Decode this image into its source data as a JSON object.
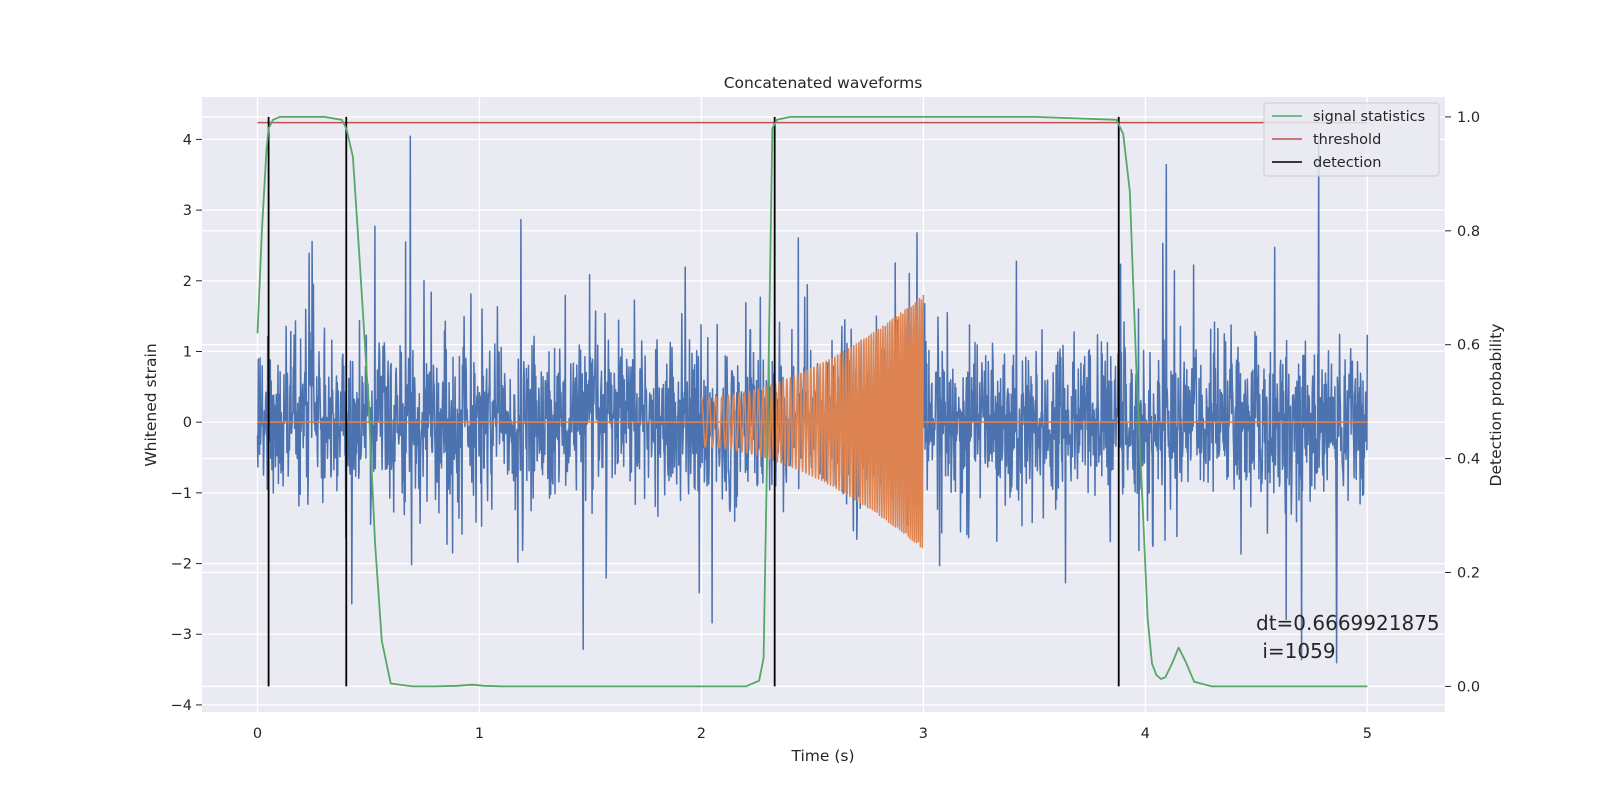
{
  "chart_data": {
    "type": "line",
    "title": "Concatenated waveforms",
    "xlabel": "Time (s)",
    "ylabel_left": "Whitened strain",
    "ylabel_right": "Detection probability",
    "xlim": [
      -0.25,
      5.35
    ],
    "ylim_left": [
      -4.1,
      4.6
    ],
    "ylim_right": [
      -0.045,
      1.035
    ],
    "x_ticks": [
      0,
      1,
      2,
      3,
      4,
      5
    ],
    "y_left_ticks": [
      -4,
      -3,
      -2,
      -1,
      0,
      1,
      2,
      3,
      4
    ],
    "y_right_ticks": [
      0.0,
      0.2,
      0.4,
      0.6,
      0.8,
      1.0
    ],
    "x_tick_labels": [
      "0",
      "1",
      "2",
      "3",
      "4",
      "5"
    ],
    "y_left_tick_labels": [
      "−4",
      "−3",
      "−2",
      "−1",
      "0",
      "1",
      "2",
      "3",
      "4"
    ],
    "y_right_tick_labels": [
      "0.0",
      "0.2",
      "0.4",
      "0.6",
      "0.8",
      "1.0"
    ],
    "grid": true,
    "legend_position": "top-right",
    "noise": {
      "x_range": [
        0,
        5
      ],
      "typical_amplitude": 0.55,
      "peak_range": [
        -3.7,
        4.2
      ],
      "color": "#4c72b0"
    },
    "chirp": {
      "x_range": [
        2.0,
        3.0
      ],
      "start_amplitude": 0.35,
      "end_amplitude": 1.8,
      "baseline": 0,
      "color": "#dd8452"
    },
    "series": [
      {
        "name": "signal statistics",
        "color": "#55a868",
        "x": [
          0.0,
          0.02,
          0.04,
          0.05,
          0.07,
          0.1,
          0.2,
          0.3,
          0.38,
          0.4,
          0.43,
          0.46,
          0.5,
          0.53,
          0.56,
          0.6,
          0.7,
          0.8,
          0.9,
          0.97,
          1.02,
          1.1,
          1.5,
          2.0,
          2.2,
          2.26,
          2.28,
          2.3,
          2.32,
          2.34,
          2.4,
          3.0,
          3.5,
          3.87,
          3.9,
          3.93,
          3.96,
          3.99,
          4.01,
          4.03,
          4.05,
          4.07,
          4.09,
          4.12,
          4.15,
          4.18,
          4.22,
          4.3,
          5.0
        ],
        "y": [
          0.62,
          0.8,
          0.94,
          0.98,
          0.995,
          1.0,
          1.0,
          1.0,
          0.995,
          0.98,
          0.93,
          0.75,
          0.5,
          0.25,
          0.08,
          0.005,
          0.0,
          0.0,
          0.001,
          0.003,
          0.001,
          0.0,
          0.0,
          0.0,
          0.0,
          0.01,
          0.05,
          0.5,
          0.98,
          0.995,
          1.0,
          1.0,
          1.0,
          0.995,
          0.97,
          0.87,
          0.55,
          0.3,
          0.12,
          0.04,
          0.02,
          0.013,
          0.016,
          0.04,
          0.068,
          0.045,
          0.008,
          0.0,
          0.0
        ]
      },
      {
        "name": "threshold",
        "color": "#c44e52",
        "x": [
          0,
          5
        ],
        "y": [
          0.99,
          0.99
        ]
      },
      {
        "name": "detection",
        "color": "#000000",
        "times": [
          0.05,
          0.4,
          2.33,
          3.88
        ],
        "y_range": [
          0.0,
          1.0
        ]
      }
    ],
    "annotation": {
      "x": 4.5,
      "lines": [
        "dt=0.6669921875",
        " i=1059"
      ]
    }
  }
}
